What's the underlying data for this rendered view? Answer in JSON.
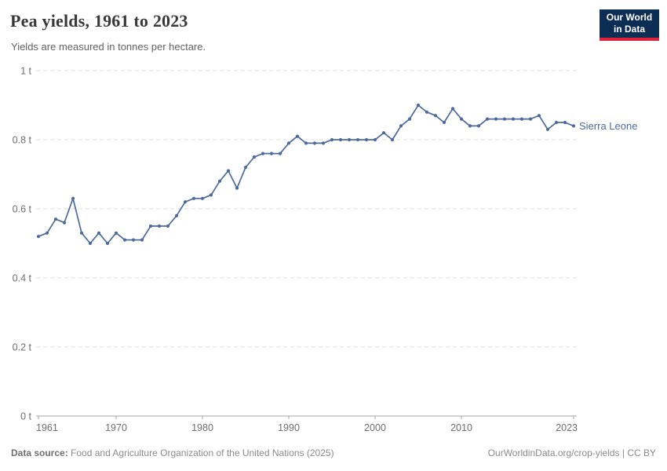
{
  "header": {
    "title": "Pea yields, 1961 to 2023",
    "subtitle": "Yields are measured in tonnes per hectare."
  },
  "logo": {
    "line1": "Our World",
    "line2": "in Data",
    "bg_color": "#0d2e54",
    "accent_color": "#e0233c"
  },
  "chart_data": {
    "type": "line",
    "title": "Pea yields, 1961 to 2023",
    "unit": "tonnes per hectare",
    "ylim": [
      0,
      1
    ],
    "grid": "dashed-horizontal",
    "legend_position": "end-of-line-label",
    "ytick_values": [
      0,
      0.2,
      0.4,
      0.6,
      0.8,
      1
    ],
    "ytick_labels": [
      "0 t",
      "0.2 t",
      "0.4 t",
      "0.6 t",
      "0.8 t",
      "1 t"
    ],
    "xtick_values": [
      1961,
      1970,
      1980,
      1990,
      2000,
      2010,
      2023
    ],
    "xtick_labels": [
      "1961",
      "1970",
      "1980",
      "1990",
      "2000",
      "2010",
      "2023"
    ],
    "x": [
      1961,
      1962,
      1963,
      1964,
      1965,
      1966,
      1967,
      1968,
      1969,
      1970,
      1971,
      1972,
      1973,
      1974,
      1975,
      1976,
      1977,
      1978,
      1979,
      1980,
      1981,
      1982,
      1983,
      1984,
      1985,
      1986,
      1987,
      1988,
      1989,
      1990,
      1991,
      1992,
      1993,
      1994,
      1995,
      1996,
      1997,
      1998,
      1999,
      2000,
      2001,
      2002,
      2003,
      2004,
      2005,
      2006,
      2007,
      2008,
      2009,
      2010,
      2011,
      2012,
      2013,
      2014,
      2015,
      2016,
      2017,
      2018,
      2019,
      2020,
      2021,
      2022,
      2023
    ],
    "series": [
      {
        "name": "Sierra Leone",
        "color": "#4C6A9C",
        "values": [
          0.52,
          0.53,
          0.57,
          0.56,
          0.63,
          0.53,
          0.5,
          0.53,
          0.5,
          0.53,
          0.51,
          0.51,
          0.51,
          0.55,
          0.55,
          0.55,
          0.58,
          0.62,
          0.63,
          0.63,
          0.64,
          0.68,
          0.71,
          0.66,
          0.72,
          0.75,
          0.76,
          0.76,
          0.76,
          0.79,
          0.81,
          0.79,
          0.79,
          0.79,
          0.8,
          0.8,
          0.8,
          0.8,
          0.8,
          0.8,
          0.82,
          0.8,
          0.84,
          0.86,
          0.9,
          0.88,
          0.87,
          0.85,
          0.89,
          0.86,
          0.84,
          0.84,
          0.86,
          0.86,
          0.86,
          0.86,
          0.86,
          0.86,
          0.87,
          0.83,
          0.85,
          0.85,
          0.84
        ]
      }
    ],
    "style": {
      "grid_color": "#dcdcdc",
      "axis_color": "#a5a5a5",
      "tick_label_color": "#6e6e6e"
    }
  },
  "footer": {
    "datasource_label": "Data source:",
    "datasource_text": " Food and Agriculture Organization of the United Nations (2025)",
    "credit": "OurWorldinData.org/crop-yields | CC BY"
  }
}
